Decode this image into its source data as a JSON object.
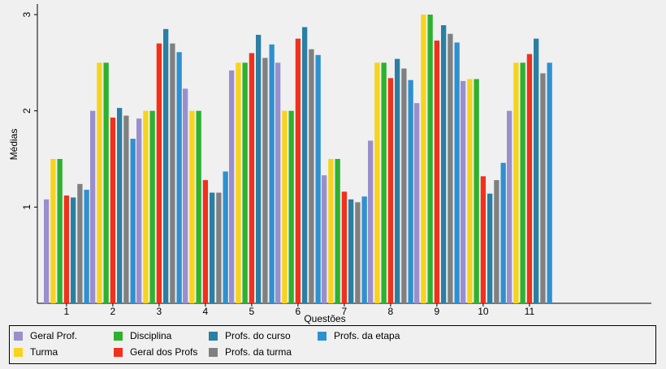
{
  "chart_data": {
    "type": "bar",
    "xlabel": "Questões",
    "ylabel": "Médias",
    "ylim": [
      0,
      3.05
    ],
    "yticks": [
      1,
      2,
      3
    ],
    "categories": [
      "1",
      "2",
      "3",
      "4",
      "5",
      "6",
      "7",
      "8",
      "9",
      "10",
      "11"
    ],
    "grid": false,
    "legend_position": "bottom",
    "series": [
      {
        "name": "Geral Prof.",
        "color": "#9a8fcd",
        "values": [
          1.08,
          2.0,
          1.92,
          2.23,
          2.42,
          2.5,
          1.33,
          1.69,
          2.08,
          2.31,
          2.0
        ]
      },
      {
        "name": "Turma",
        "color": "#f7d31c",
        "values": [
          1.5,
          2.5,
          2.0,
          2.0,
          2.5,
          2.0,
          1.5,
          2.5,
          3.0,
          2.33,
          2.5
        ]
      },
      {
        "name": "Disciplina",
        "color": "#2db12e",
        "values": [
          1.5,
          2.5,
          2.0,
          2.0,
          2.5,
          2.0,
          1.5,
          2.5,
          3.0,
          2.33,
          2.5
        ]
      },
      {
        "name": "Geral dos Profs",
        "color": "#f2301c",
        "values": [
          1.12,
          1.93,
          2.7,
          1.28,
          2.6,
          2.75,
          1.16,
          2.34,
          2.73,
          1.32,
          2.59
        ]
      },
      {
        "name": "Profs. do curso",
        "color": "#2a7fa3",
        "values": [
          1.1,
          2.03,
          2.85,
          1.15,
          2.79,
          2.87,
          1.08,
          2.54,
          2.89,
          1.14,
          2.75
        ]
      },
      {
        "name": "Profs. da turma",
        "color": "#808080",
        "values": [
          1.24,
          1.95,
          2.7,
          1.15,
          2.55,
          2.64,
          1.05,
          2.44,
          2.8,
          1.28,
          2.39
        ]
      },
      {
        "name": "Profs. da etapa",
        "color": "#2f90d0",
        "values": [
          1.18,
          1.71,
          2.61,
          1.37,
          2.69,
          2.58,
          1.11,
          2.32,
          2.71,
          1.46,
          2.5
        ]
      }
    ]
  }
}
